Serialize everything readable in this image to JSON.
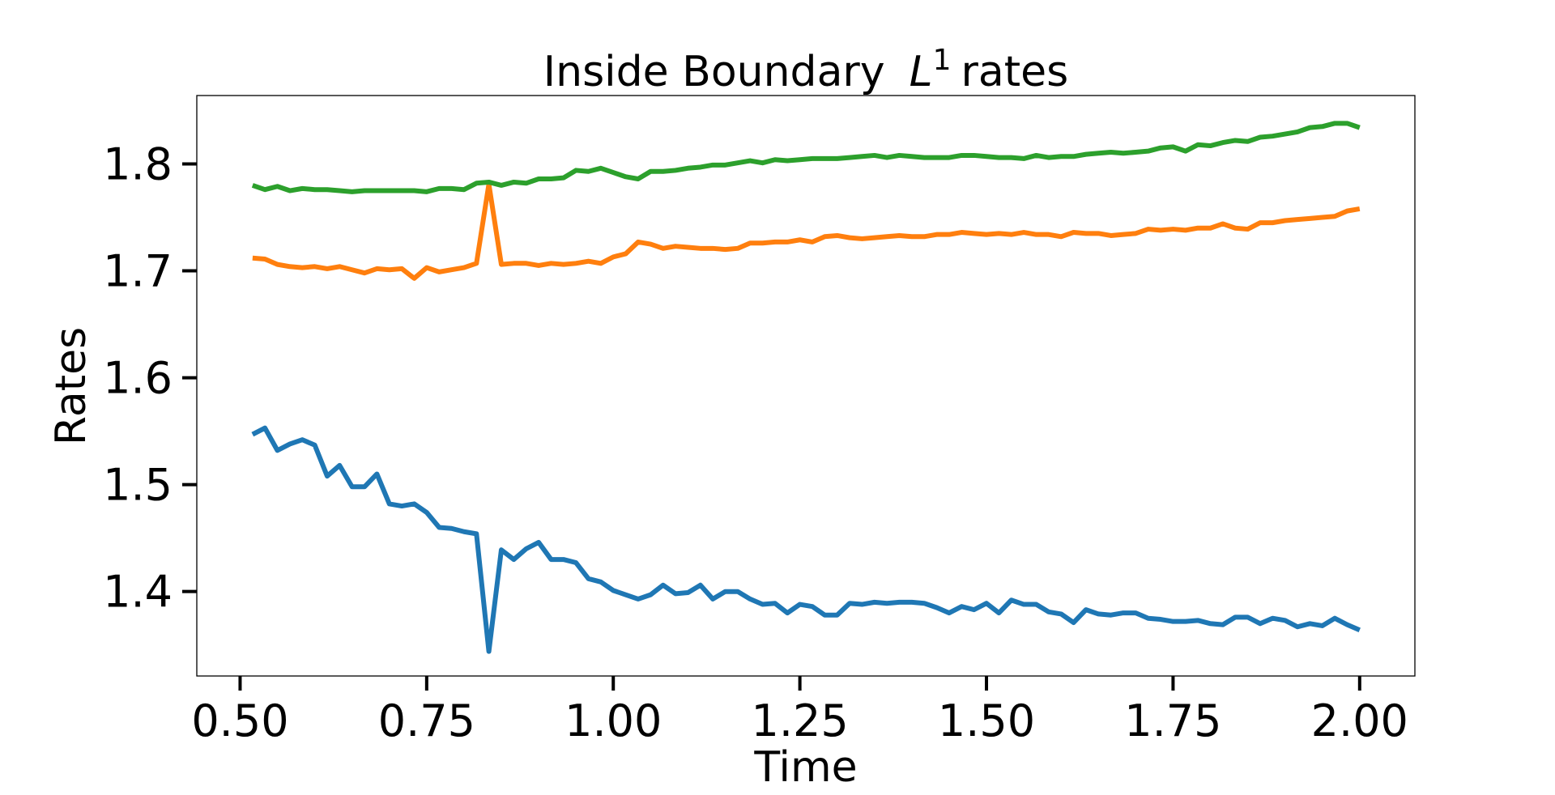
{
  "chart_data": {
    "type": "line",
    "title": {
      "text": "Inside Boundary",
      "math": "L",
      "sup": "1",
      "tail": "rates"
    },
    "xlabel": "Time",
    "ylabel": "Rates",
    "xlim": [
      0.442,
      2.074
    ],
    "ylim": [
      1.321,
      1.864
    ],
    "xticks": [
      {
        "value": 0.5,
        "label": "0.50"
      },
      {
        "value": 0.75,
        "label": "0.75"
      },
      {
        "value": 1.0,
        "label": "1.00"
      },
      {
        "value": 1.25,
        "label": "1.25"
      },
      {
        "value": 1.5,
        "label": "1.50"
      },
      {
        "value": 1.75,
        "label": "1.75"
      },
      {
        "value": 2.0,
        "label": "2.00"
      }
    ],
    "yticks": [
      1.4,
      1.5,
      1.6,
      1.7,
      1.8
    ],
    "grid": false,
    "x": [
      0.5167,
      0.5333,
      0.55,
      0.5667,
      0.5833,
      0.6,
      0.6167,
      0.6333,
      0.65,
      0.6667,
      0.6833,
      0.7,
      0.7167,
      0.7333,
      0.75,
      0.7667,
      0.7833,
      0.8,
      0.8167,
      0.8333,
      0.85,
      0.8667,
      0.8833,
      0.9,
      0.9167,
      0.9333,
      0.95,
      0.9667,
      0.9833,
      1.0,
      1.0167,
      1.0333,
      1.05,
      1.0667,
      1.0833,
      1.1,
      1.1167,
      1.1333,
      1.15,
      1.1667,
      1.1833,
      1.2,
      1.2167,
      1.2333,
      1.25,
      1.2667,
      1.2833,
      1.3,
      1.3167,
      1.3333,
      1.35,
      1.3667,
      1.3833,
      1.4,
      1.4167,
      1.4333,
      1.45,
      1.4667,
      1.4833,
      1.5,
      1.5167,
      1.5333,
      1.55,
      1.5667,
      1.5833,
      1.6,
      1.6167,
      1.6333,
      1.65,
      1.6667,
      1.6833,
      1.7,
      1.7167,
      1.7333,
      1.75,
      1.7667,
      1.7833,
      1.8,
      1.8167,
      1.8333,
      1.85,
      1.8667,
      1.8833,
      1.9,
      1.9167,
      1.9333,
      1.95,
      1.9667,
      1.9833,
      2.0
    ],
    "series": [
      {
        "color": "#1f77b4",
        "values": [
          1.547,
          1.553,
          1.532,
          1.538,
          1.542,
          1.537,
          1.508,
          1.518,
          1.498,
          1.498,
          1.51,
          1.482,
          1.48,
          1.482,
          1.474,
          1.46,
          1.459,
          1.456,
          1.454,
          1.344,
          1.439,
          1.43,
          1.44,
          1.446,
          1.43,
          1.43,
          1.427,
          1.412,
          1.409,
          1.401,
          1.397,
          1.393,
          1.397,
          1.406,
          1.398,
          1.399,
          1.406,
          1.393,
          1.4,
          1.4,
          1.393,
          1.388,
          1.389,
          1.38,
          1.388,
          1.386,
          1.378,
          1.378,
          1.389,
          1.388,
          1.39,
          1.389,
          1.39,
          1.39,
          1.389,
          1.385,
          1.38,
          1.386,
          1.383,
          1.389,
          1.38,
          1.392,
          1.388,
          1.388,
          1.381,
          1.379,
          1.371,
          1.383,
          1.379,
          1.378,
          1.38,
          1.38,
          1.375,
          1.374,
          1.372,
          1.372,
          1.373,
          1.37,
          1.369,
          1.376,
          1.376,
          1.37,
          1.375,
          1.373,
          1.367,
          1.37,
          1.368,
          1.375,
          1.369,
          1.364
        ]
      },
      {
        "color": "#ff7f0e",
        "values": [
          1.712,
          1.711,
          1.706,
          1.704,
          1.703,
          1.704,
          1.702,
          1.704,
          1.701,
          1.698,
          1.702,
          1.701,
          1.702,
          1.693,
          1.703,
          1.699,
          1.701,
          1.703,
          1.707,
          1.781,
          1.706,
          1.707,
          1.707,
          1.705,
          1.707,
          1.706,
          1.707,
          1.709,
          1.707,
          1.713,
          1.716,
          1.727,
          1.725,
          1.721,
          1.723,
          1.722,
          1.721,
          1.721,
          1.72,
          1.721,
          1.726,
          1.726,
          1.727,
          1.727,
          1.729,
          1.727,
          1.732,
          1.733,
          1.731,
          1.73,
          1.731,
          1.732,
          1.733,
          1.732,
          1.732,
          1.734,
          1.734,
          1.736,
          1.735,
          1.734,
          1.735,
          1.734,
          1.736,
          1.734,
          1.734,
          1.732,
          1.736,
          1.735,
          1.735,
          1.733,
          1.734,
          1.735,
          1.739,
          1.738,
          1.739,
          1.738,
          1.74,
          1.74,
          1.744,
          1.74,
          1.739,
          1.745,
          1.745,
          1.747,
          1.748,
          1.749,
          1.75,
          1.751,
          1.756,
          1.758
        ]
      },
      {
        "color": "#2ca02c",
        "values": [
          1.78,
          1.776,
          1.779,
          1.775,
          1.777,
          1.776,
          1.776,
          1.775,
          1.774,
          1.775,
          1.775,
          1.775,
          1.775,
          1.775,
          1.774,
          1.777,
          1.777,
          1.776,
          1.782,
          1.783,
          1.78,
          1.783,
          1.782,
          1.786,
          1.786,
          1.787,
          1.794,
          1.793,
          1.796,
          1.792,
          1.788,
          1.786,
          1.793,
          1.793,
          1.794,
          1.796,
          1.797,
          1.799,
          1.799,
          1.801,
          1.803,
          1.801,
          1.804,
          1.803,
          1.804,
          1.805,
          1.805,
          1.805,
          1.806,
          1.807,
          1.808,
          1.806,
          1.808,
          1.807,
          1.806,
          1.806,
          1.806,
          1.808,
          1.808,
          1.807,
          1.806,
          1.806,
          1.805,
          1.808,
          1.806,
          1.807,
          1.807,
          1.809,
          1.81,
          1.811,
          1.81,
          1.811,
          1.812,
          1.815,
          1.816,
          1.812,
          1.818,
          1.817,
          1.82,
          1.822,
          1.821,
          1.825,
          1.826,
          1.828,
          1.83,
          1.834,
          1.835,
          1.838,
          1.838,
          1.834
        ]
      }
    ]
  }
}
